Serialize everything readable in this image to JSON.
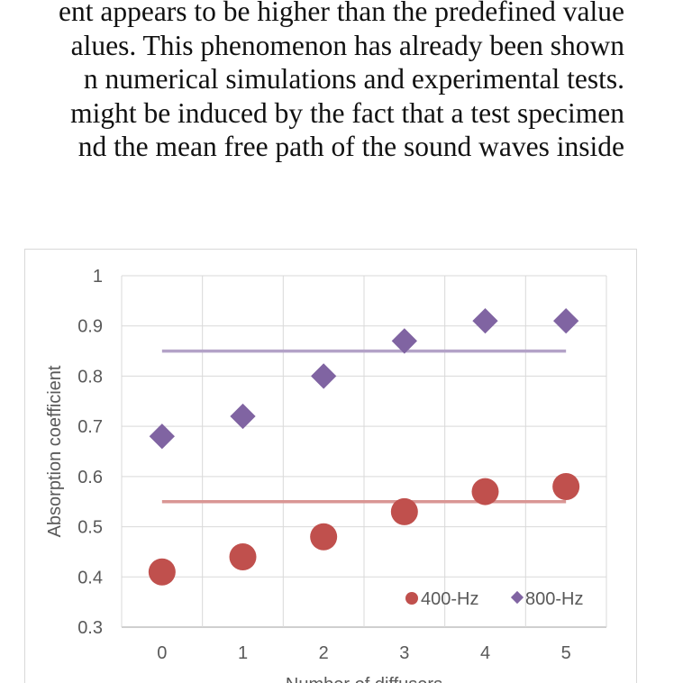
{
  "document": {
    "lines": [
      "ent appears to be higher than the predefined value",
      "alues. This phenomenon has already been shown",
      "n numerical simulations and experimental tests.",
      " might be induced by the fact that a test specimen",
      "nd the mean free path of the sound waves inside"
    ]
  },
  "chart_data": {
    "type": "scatter",
    "title": "",
    "xlabel": "Number of diffusers",
    "ylabel": "Absorption coefficient",
    "x": [
      0,
      1,
      2,
      3,
      4,
      5
    ],
    "xticks": [
      "0",
      "1",
      "2",
      "3",
      "4",
      "5"
    ],
    "ylim": [
      0.3,
      1
    ],
    "yticks": [
      "0.3",
      "0.4",
      "0.5",
      "0.6",
      "0.7",
      "0.8",
      "0.9",
      "1"
    ],
    "grid": true,
    "legend_position": "bottom-right",
    "series": [
      {
        "name": "400-Hz",
        "marker": "circle",
        "color": "#c0504d",
        "values": [
          0.41,
          0.44,
          0.48,
          0.53,
          0.57,
          0.58
        ],
        "reference_line": 0.55,
        "line_color": "#d99694"
      },
      {
        "name": "800-Hz",
        "marker": "diamond",
        "color": "#8064a2",
        "values": [
          0.68,
          0.72,
          0.8,
          0.87,
          0.91,
          0.91
        ],
        "reference_line": 0.85,
        "line_color": "#b3a2c7"
      }
    ]
  }
}
